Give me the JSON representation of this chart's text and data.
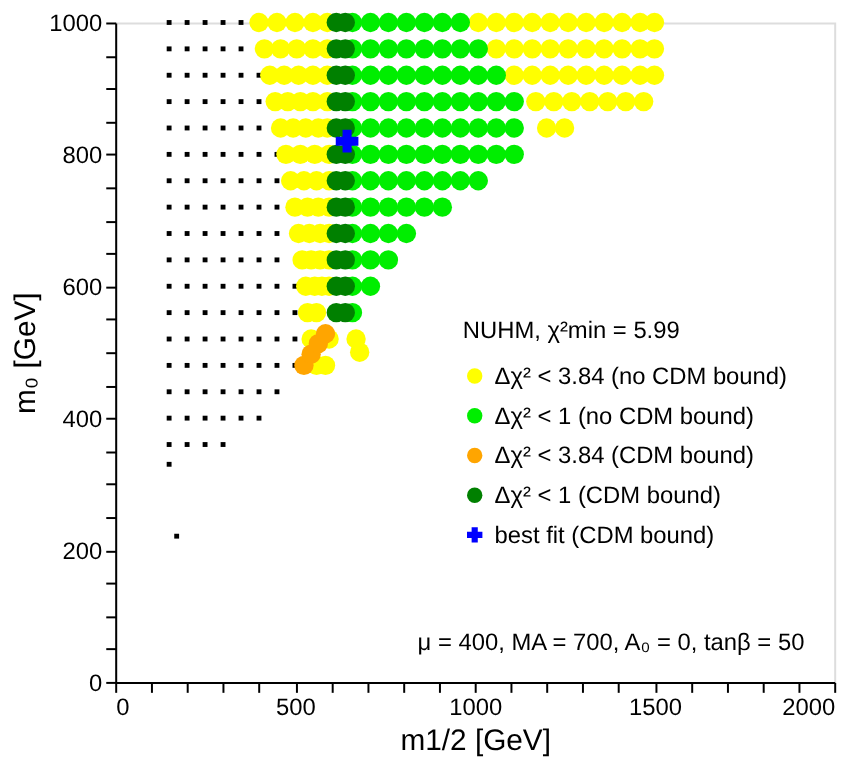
{
  "chart_data": {
    "type": "scatter",
    "marker": "circle",
    "xlabel": "m1/2 [GeV]",
    "ylabel": "m₀ [GeV]",
    "legend_title": "NUHM, χ²min = 5.99",
    "legend": "right",
    "grid": false,
    "annotations": [
      "μ = 400, MA = 700, A₀ = 0, tanβ = 50"
    ],
    "xlim": [
      0,
      2000
    ],
    "ylim": [
      0,
      1000
    ],
    "xticks": [
      0,
      {
        "value": 100,
        "label": null
      },
      {
        "value": 200,
        "label": null
      },
      {
        "value": 300,
        "label": null
      },
      {
        "value": 400,
        "label": null
      },
      500,
      {
        "value": 600,
        "label": null
      },
      {
        "value": 700,
        "label": null
      },
      {
        "value": 800,
        "label": null
      },
      {
        "value": 900,
        "label": null
      },
      1000,
      {
        "value": 1100,
        "label": null
      },
      {
        "value": 1200,
        "label": null
      },
      {
        "value": 1300,
        "label": null
      },
      {
        "value": 1400,
        "label": null
      },
      1500,
      {
        "value": 1600,
        "label": null
      },
      {
        "value": 1700,
        "label": null
      },
      {
        "value": 1800,
        "label": null
      },
      {
        "value": 1900,
        "label": null
      },
      2000
    ],
    "yticks": [
      0,
      {
        "value": 50,
        "label": null
      },
      {
        "value": 100,
        "label": null
      },
      {
        "value": 150,
        "label": null
      },
      200,
      {
        "value": 250,
        "label": null
      },
      {
        "value": 300,
        "label": null
      },
      {
        "value": 350,
        "label": null
      },
      400,
      {
        "value": 450,
        "label": null
      },
      {
        "value": 500,
        "label": null
      },
      {
        "value": 550,
        "label": null
      },
      600,
      {
        "value": 650,
        "label": null
      },
      {
        "value": 700,
        "label": null
      },
      {
        "value": 750,
        "label": null
      },
      800,
      {
        "value": 850,
        "label": null
      },
      {
        "value": 900,
        "label": null
      },
      {
        "value": 950,
        "label": null
      },
      1000
    ],
    "series": [
      {
        "color": "#000000",
        "marker": "square",
        "x": [
          150,
          200,
          250,
          300,
          350,
          150,
          200,
          250,
          300,
          350,
          150,
          200,
          250,
          300,
          350,
          400,
          150,
          200,
          250,
          300,
          350,
          400,
          150,
          200,
          250,
          300,
          350,
          400,
          150,
          200,
          250,
          300,
          350,
          400,
          450,
          150,
          200,
          250,
          300,
          350,
          400,
          450,
          150,
          200,
          250,
          300,
          350,
          400,
          450,
          150,
          200,
          250,
          300,
          350,
          400,
          450,
          150,
          200,
          250,
          300,
          350,
          400,
          450,
          150,
          200,
          250,
          300,
          350,
          400,
          450,
          500,
          150,
          200,
          250,
          300,
          350,
          400,
          450,
          500,
          150,
          200,
          250,
          300,
          350,
          400,
          450,
          500,
          150,
          200,
          250,
          300,
          350,
          400,
          450,
          500,
          150,
          200,
          250,
          300,
          350,
          400,
          450,
          150,
          200,
          250,
          300,
          350,
          400,
          150,
          200,
          250,
          300,
          150,
          171
        ],
        "values": [
          1000,
          1000,
          1000,
          1000,
          1000,
          960,
          960,
          960,
          960,
          960,
          920,
          920,
          920,
          920,
          920,
          920,
          880,
          880,
          880,
          880,
          880,
          880,
          840,
          840,
          840,
          840,
          840,
          840,
          800,
          800,
          800,
          800,
          800,
          800,
          800,
          760,
          760,
          760,
          760,
          760,
          760,
          760,
          720,
          720,
          720,
          720,
          720,
          720,
          720,
          680,
          680,
          680,
          680,
          680,
          680,
          680,
          640,
          640,
          640,
          640,
          640,
          640,
          640,
          600,
          600,
          600,
          600,
          600,
          600,
          600,
          600,
          560,
          560,
          560,
          560,
          560,
          560,
          560,
          560,
          520,
          520,
          520,
          520,
          520,
          520,
          520,
          520,
          480,
          480,
          480,
          480,
          480,
          480,
          480,
          480,
          440,
          440,
          440,
          440,
          440,
          440,
          440,
          400,
          400,
          400,
          400,
          400,
          400,
          360,
          360,
          360,
          360,
          330,
          221
        ]
      },
      {
        "name": "Δχ² < 3.84 (no CDM bound)",
        "color": "#ffff00",
        "x": [
          400,
          450,
          500,
          550,
          590,
          415,
          460,
          505,
          550,
          590,
          430,
          470,
          510,
          550,
          590,
          445,
          480,
          515,
          550,
          590,
          460,
          495,
          530,
          565,
          590,
          475,
          515,
          555,
          595,
          488,
          525,
          560,
          595,
          500,
          535,
          565,
          595,
          510,
          540,
          570,
          595,
          520,
          545,
          570,
          595,
          530,
          555,
          575,
          595,
          535,
          560,
          545,
          595,
          560,
          585,
          670,
          680,
          1010,
          1060,
          1110,
          1160,
          1210,
          1260,
          1310,
          1360,
          1410,
          1460,
          1500,
          1060,
          1110,
          1160,
          1210,
          1260,
          1310,
          1360,
          1410,
          1460,
          1500,
          1110,
          1160,
          1210,
          1260,
          1310,
          1360,
          1410,
          1460,
          1500,
          1170,
          1220,
          1270,
          1320,
          1370,
          1420,
          1470,
          1200,
          1250
        ],
        "values": [
          1000,
          1000,
          1000,
          1000,
          1000,
          960,
          960,
          960,
          960,
          960,
          920,
          920,
          920,
          920,
          920,
          880,
          880,
          880,
          880,
          880,
          840,
          840,
          840,
          840,
          840,
          800,
          800,
          800,
          800,
          760,
          760,
          760,
          760,
          720,
          720,
          720,
          720,
          680,
          680,
          680,
          680,
          640,
          640,
          640,
          640,
          600,
          600,
          600,
          600,
          560,
          560,
          520,
          520,
          480,
          480,
          520,
          500,
          1000,
          1000,
          1000,
          1000,
          1000,
          1000,
          1000,
          1000,
          1000,
          1000,
          1000,
          960,
          960,
          960,
          960,
          960,
          960,
          960,
          960,
          960,
          960,
          920,
          920,
          920,
          920,
          920,
          920,
          920,
          920,
          920,
          880,
          880,
          880,
          880,
          880,
          880,
          880,
          840,
          840
        ]
      },
      {
        "name": "Δχ² < 1 (no CDM bound)",
        "color": "#00ee00",
        "x": [
          660,
          710,
          760,
          810,
          860,
          910,
          960,
          660,
          710,
          760,
          810,
          860,
          910,
          960,
          1010,
          660,
          710,
          760,
          810,
          860,
          910,
          960,
          1010,
          1060,
          660,
          710,
          760,
          810,
          860,
          910,
          960,
          1010,
          1060,
          1110,
          660,
          710,
          760,
          810,
          860,
          910,
          960,
          1010,
          1060,
          1110,
          660,
          710,
          760,
          810,
          860,
          910,
          960,
          1010,
          1060,
          1110,
          660,
          710,
          760,
          810,
          860,
          910,
          960,
          1010,
          660,
          710,
          760,
          810,
          860,
          910,
          660,
          710,
          760,
          810,
          660,
          710,
          760,
          660,
          710,
          660
        ],
        "values": [
          1000,
          1000,
          1000,
          1000,
          1000,
          1000,
          1000,
          960,
          960,
          960,
          960,
          960,
          960,
          960,
          960,
          920,
          920,
          920,
          920,
          920,
          920,
          920,
          920,
          920,
          880,
          880,
          880,
          880,
          880,
          880,
          880,
          880,
          880,
          880,
          840,
          840,
          840,
          840,
          840,
          840,
          840,
          840,
          840,
          840,
          800,
          800,
          800,
          800,
          800,
          800,
          800,
          800,
          800,
          800,
          760,
          760,
          760,
          760,
          760,
          760,
          760,
          760,
          720,
          720,
          720,
          720,
          720,
          720,
          680,
          680,
          680,
          680,
          640,
          640,
          640,
          600,
          600,
          560
        ]
      },
      {
        "name": "Δχ² < 3.84 (CDM bound)",
        "color": "#ffa500",
        "x": [
          525,
          545,
          565,
          585
        ],
        "values": [
          480,
          497,
          513,
          528
        ]
      },
      {
        "name": "Δχ² < 1 (CDM bound)",
        "color": "#008000",
        "x": [
          615,
          640,
          615,
          640,
          615,
          640,
          615,
          640,
          615,
          640,
          615,
          640,
          615,
          640,
          615,
          640,
          615,
          640,
          615,
          640,
          615,
          640,
          615,
          640
        ],
        "values": [
          1000,
          1000,
          960,
          960,
          920,
          920,
          880,
          880,
          840,
          840,
          800,
          800,
          760,
          760,
          720,
          720,
          680,
          680,
          640,
          640,
          600,
          600,
          560,
          560
        ]
      },
      {
        "name": "best fit (CDM bound)",
        "color": "#0000ff",
        "marker": "cross",
        "x": [
          645
        ],
        "values": [
          820
        ]
      }
    ]
  }
}
